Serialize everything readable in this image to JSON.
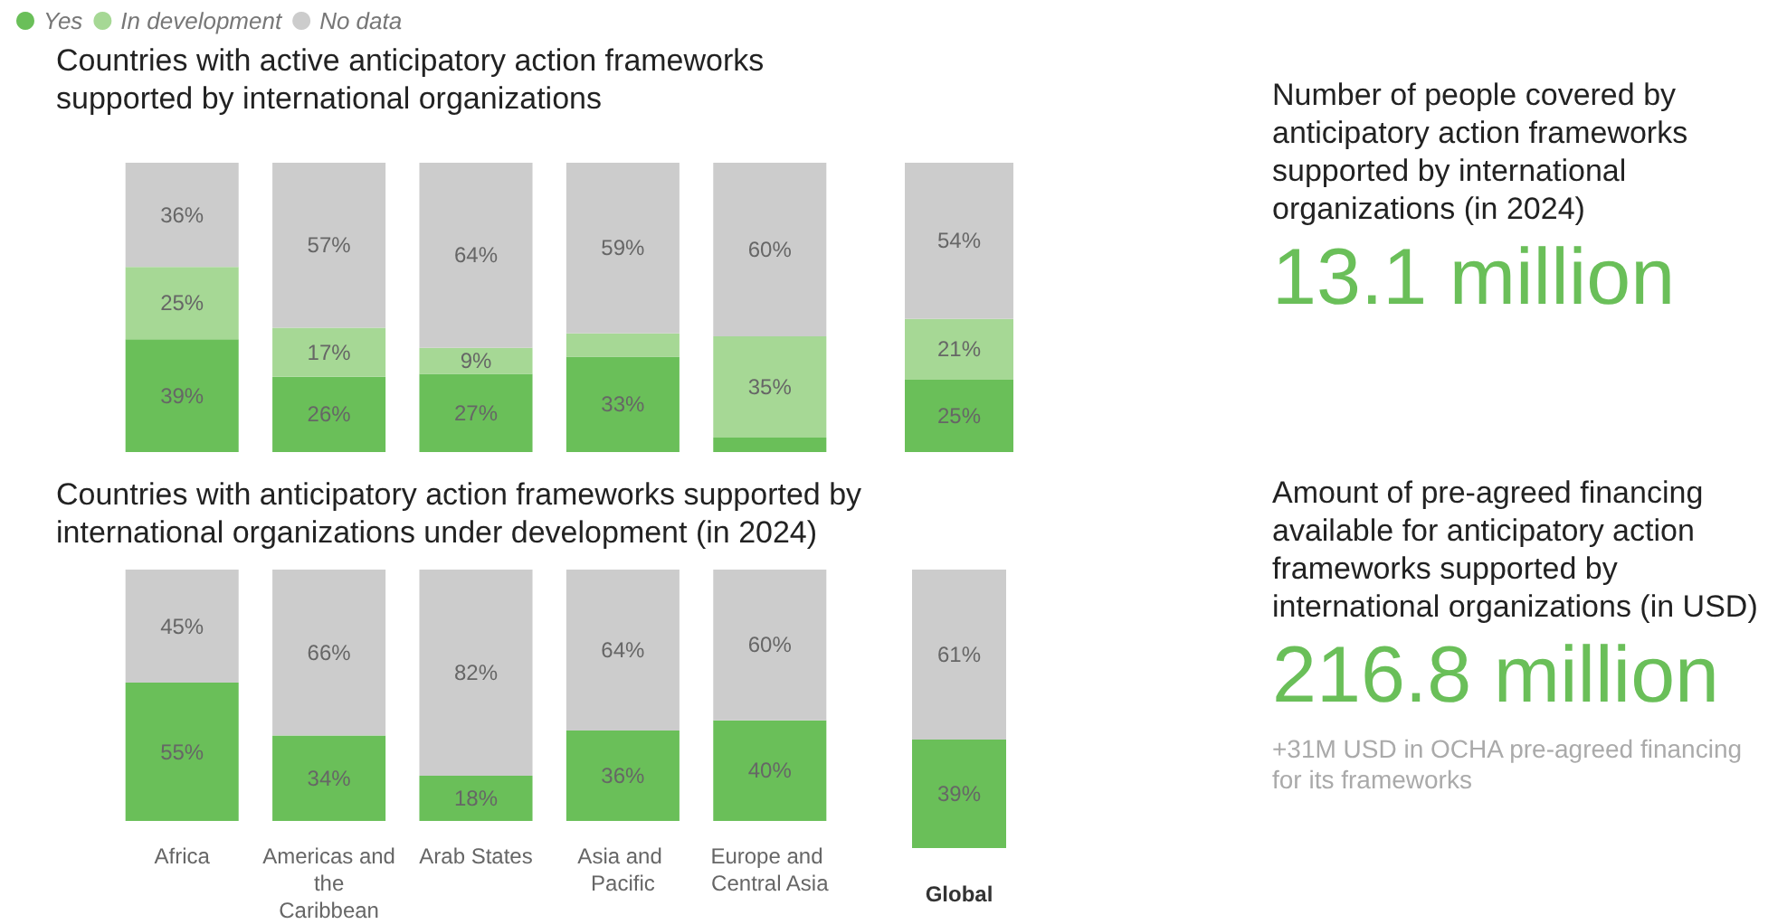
{
  "chart_data": [
    {
      "type": "bar",
      "title": "Countries with active anticipatory action frameworks supported by international organizations",
      "categories": [
        "Africa",
        "Americas and the Caribbean",
        "Arab States",
        "Asia and Pacific",
        "Europe and Central Asia"
      ],
      "stacked": true,
      "ylim": [
        0,
        100
      ],
      "tick_labels": false,
      "legend": "top left",
      "series": [
        {
          "name": "Yes",
          "color": "#6abf59",
          "values": [
            39,
            26,
            27,
            33,
            5
          ],
          "value_labels": [
            "39%",
            "26%",
            "27%",
            "33%",
            null
          ]
        },
        {
          "name": "In development",
          "color": "#a6d895",
          "values": [
            25,
            17,
            9,
            8,
            35
          ],
          "value_labels": [
            "25%",
            "17%",
            "9%",
            null,
            "35%"
          ]
        },
        {
          "name": "No data",
          "color": "#cccccc",
          "values": [
            36,
            57,
            64,
            59,
            60
          ],
          "value_labels": [
            "36%",
            "57%",
            "64%",
            "59%",
            "60%"
          ]
        }
      ]
    },
    {
      "type": "bar",
      "categories": [
        "Global"
      ],
      "stacked": true,
      "ylim": [
        0,
        100
      ],
      "tick_labels": false,
      "series": [
        {
          "color": "#6abf59",
          "values": [
            25
          ],
          "value_labels": [
            "25%"
          ]
        },
        {
          "color": "#a6d895",
          "values": [
            21
          ],
          "value_labels": [
            "21%"
          ]
        },
        {
          "color": "#cccccc",
          "values": [
            54
          ],
          "value_labels": [
            "54%"
          ]
        }
      ]
    },
    {
      "type": "bar",
      "title": "Countries with anticipatory action frameworks supported by international organizations under development (in 2024)",
      "categories": [
        "Africa",
        "Americas and the Caribbean",
        "Arab States",
        "Asia and Pacific",
        "Europe and Central Asia"
      ],
      "stacked": true,
      "ylim": [
        0,
        100
      ],
      "tick_labels": "x",
      "series": [
        {
          "color": "#6abf59",
          "values": [
            55,
            34,
            18,
            36,
            40
          ],
          "value_labels": [
            "55%",
            "34%",
            "18%",
            "36%",
            "40%"
          ]
        },
        {
          "color": "#cccccc",
          "values": [
            45,
            66,
            82,
            64,
            60
          ],
          "value_labels": [
            "45%",
            "66%",
            "82%",
            "64%",
            "60%"
          ]
        }
      ]
    },
    {
      "type": "bar",
      "categories": [
        "Global"
      ],
      "stacked": true,
      "ylim": [
        0,
        100
      ],
      "tick_labels": "x",
      "series": [
        {
          "color": "#6abf59",
          "values": [
            39
          ],
          "value_labels": [
            "39%"
          ]
        },
        {
          "color": "#cccccc",
          "values": [
            61
          ],
          "value_labels": [
            "61%"
          ]
        }
      ]
    },
    {
      "type": "other",
      "title": "Number of people covered by anticipatory action frameworks supported by international organizations (in 2024)",
      "annotations": [
        "13.1 million"
      ]
    },
    {
      "type": "other",
      "title": "Amount of pre-agreed financing available for anticipatory action frameworks supported by international organizations (in USD)",
      "annotations": [
        "216.8 million",
        "+31M USD in OCHA pre-agreed financing for its frameworks"
      ]
    }
  ]
}
